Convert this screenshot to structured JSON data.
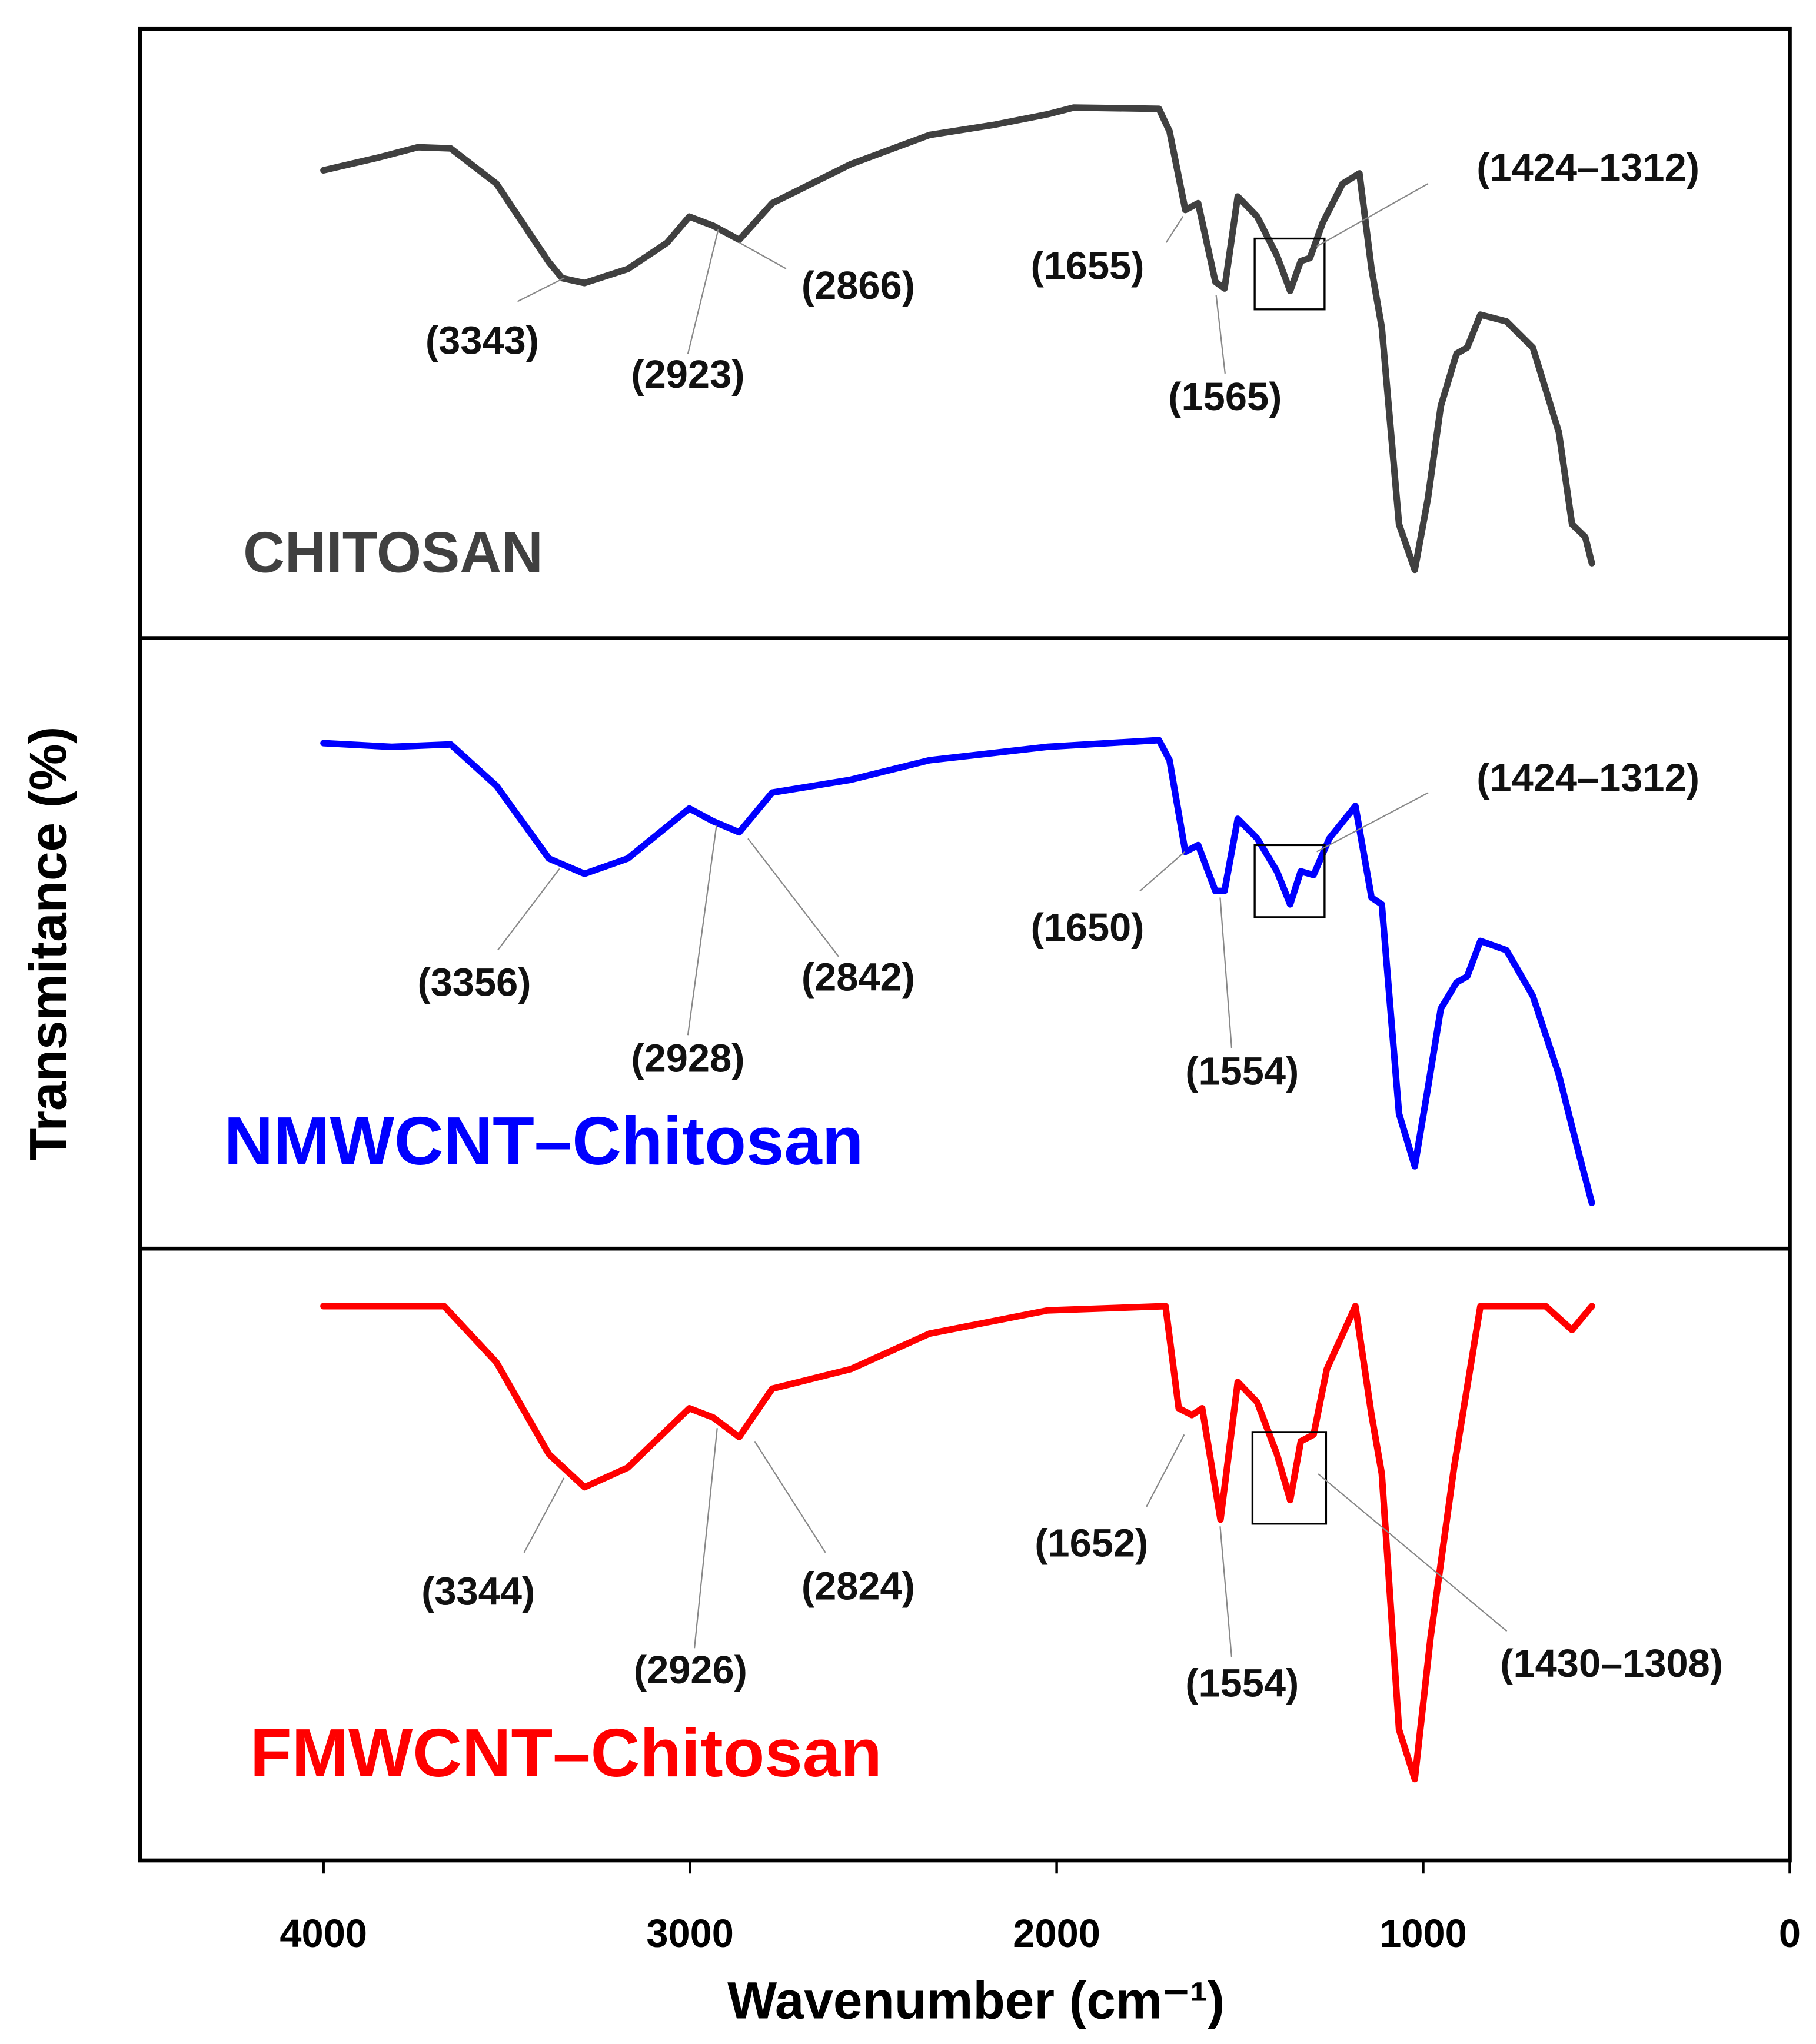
{
  "chart_data": {
    "type": "line",
    "xlabel": "Wavenumber (cm⁻¹)",
    "ylabel": "Transmitance (%)",
    "xlim": [
      4500,
      0
    ],
    "xticks": [
      4000,
      3000,
      2000,
      1000,
      0
    ],
    "ylim": [
      0,
      100
    ],
    "series": [
      {
        "name": "CHITOSAN",
        "color": "#404040",
        "x": [
          4000,
          3850,
          3742,
          3653,
          3528,
          3385,
          3349,
          3288,
          3170,
          3063,
          3002,
          2937,
          2866,
          2776,
          2562,
          2347,
          2168,
          2025,
          1954,
          1721,
          1692,
          1649,
          1614,
          1567,
          1542,
          1506,
          1453,
          1399,
          1363,
          1334,
          1309,
          1274,
          1220,
          1174,
          1141,
          1113,
          1066,
          1023,
          987,
          952,
          909,
          880,
          844,
          773,
          701,
          630,
          594,
          558,
          540
        ],
        "values": [
          76.8,
          78.9,
          80.6,
          80.4,
          74.6,
          61.7,
          59.1,
          58.3,
          60.6,
          64.9,
          69.2,
          67.7,
          65.4,
          71.4,
          77.8,
          82.6,
          84.3,
          86.0,
          87.1,
          86.9,
          83.2,
          70.3,
          71.4,
          58.5,
          57.4,
          72.5,
          69.2,
          62.8,
          57.0,
          61.9,
          62.4,
          68.2,
          74.6,
          76.3,
          60.6,
          51.0,
          18.7,
          11.2,
          23.0,
          38.1,
          46.7,
          47.7,
          53.1,
          52.0,
          47.7,
          33.8,
          18.7,
          16.6,
          12.3
        ],
        "annotations": [
          {
            "value": 3343,
            "label": "(3343)"
          },
          {
            "value": 2923,
            "label": "(2923)"
          },
          {
            "value": 2866,
            "label": "(2866)"
          },
          {
            "value": 1655,
            "label": "(1655)"
          },
          {
            "value": 1565,
            "label": "(1565)"
          },
          {
            "range": [
              1424,
              1312
            ],
            "label": "(1424–1312)"
          }
        ]
      },
      {
        "name": "NMWCNT–Chitosan",
        "color": "#0000ff",
        "x": [
          4000,
          3814,
          3653,
          3528,
          3385,
          3288,
          3170,
          3002,
          2937,
          2866,
          2776,
          2562,
          2347,
          2025,
          1721,
          1692,
          1649,
          1614,
          1567,
          1542,
          1506,
          1453,
          1399,
          1363,
          1334,
          1299,
          1256,
          1185,
          1141,
          1113,
          1066,
          1023,
          987,
          952,
          909,
          880,
          844,
          773,
          701,
          630,
          576,
          540
        ],
        "values": [
          82.8,
          82.2,
          82.6,
          75.8,
          63.9,
          61.4,
          63.9,
          72.1,
          70.0,
          68.2,
          74.7,
          76.8,
          80.0,
          82.2,
          83.3,
          80.0,
          65.0,
          66.1,
          58.6,
          58.6,
          70.4,
          67.2,
          61.8,
          56.4,
          61.8,
          61.2,
          67.2,
          72.5,
          57.5,
          56.4,
          22.1,
          13.5,
          26.4,
          39.3,
          43.6,
          44.6,
          50.4,
          48.9,
          41.4,
          28.5,
          15.7,
          7.5
        ],
        "annotations": [
          {
            "value": 3356,
            "label": "(3356)"
          },
          {
            "value": 2928,
            "label": "(2928)"
          },
          {
            "value": 2842,
            "label": "(2842)"
          },
          {
            "value": 1650,
            "label": "(1650)"
          },
          {
            "value": 1554,
            "label": "(1554)"
          },
          {
            "range": [
              1424,
              1312
            ],
            "label": "(1424–1312)"
          }
        ]
      },
      {
        "name": "FMWCNT–Chitosan",
        "color": "#ff0000",
        "x": [
          4000,
          3671,
          3528,
          3385,
          3288,
          3170,
          3002,
          2937,
          2866,
          2776,
          2562,
          2347,
          2025,
          1703,
          1667,
          1631,
          1603,
          1553,
          1506,
          1453,
          1399,
          1363,
          1334,
          1299,
          1263,
          1185,
          1141,
          1113,
          1066,
          1023,
          980,
          916,
          844,
          666,
          594,
          540
        ],
        "values": [
          90.6,
          90.6,
          81.4,
          66.4,
          61.0,
          64.2,
          73.9,
          72.4,
          69.2,
          77.1,
          80.3,
          86.1,
          89.9,
          90.6,
          73.9,
          72.8,
          73.9,
          55.7,
          78.2,
          74.9,
          66.4,
          58.9,
          68.5,
          69.6,
          80.3,
          90.6,
          72.8,
          63.2,
          21.4,
          13.3,
          36.4,
          64.2,
          90.6,
          90.6,
          86.7,
          90.6
        ],
        "annotations": [
          {
            "value": 3344,
            "label": "(3344)"
          },
          {
            "value": 2926,
            "label": "(2926)"
          },
          {
            "value": 2824,
            "label": "(2824)"
          },
          {
            "value": 1652,
            "label": "(1652)"
          },
          {
            "value": 1554,
            "label": "(1554)"
          },
          {
            "range": [
              1430,
              1308
            ],
            "label": "(1430–1308)"
          }
        ]
      }
    ]
  }
}
